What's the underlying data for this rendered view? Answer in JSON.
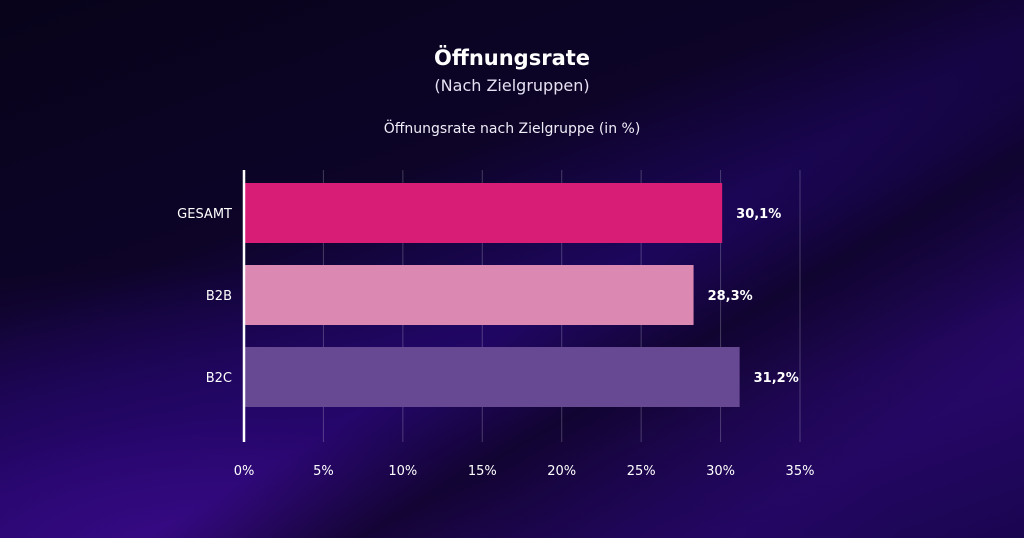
{
  "chart_data": {
    "type": "bar",
    "orientation": "horizontal",
    "title": "Öffnungsrate",
    "subtitle": "(Nach Zielgruppen)",
    "chart_title": "Öffnungsrate nach Zielgruppe (in %)",
    "categories": [
      "GESAMT",
      "B2B",
      "B2C"
    ],
    "values": [
      30.1,
      28.3,
      31.2
    ],
    "data_labels": [
      "30,1%",
      "28,3%",
      "31,2%"
    ],
    "colors": [
      "#d81d76",
      "#db88b2",
      "#674893"
    ],
    "xlim": [
      0,
      35
    ],
    "xticks": [
      0,
      5,
      10,
      15,
      20,
      25,
      30,
      35
    ],
    "xtick_labels": [
      "0%",
      "5%",
      "10%",
      "15%",
      "20%",
      "25%",
      "30%",
      "35%"
    ],
    "grid": "vertical"
  }
}
